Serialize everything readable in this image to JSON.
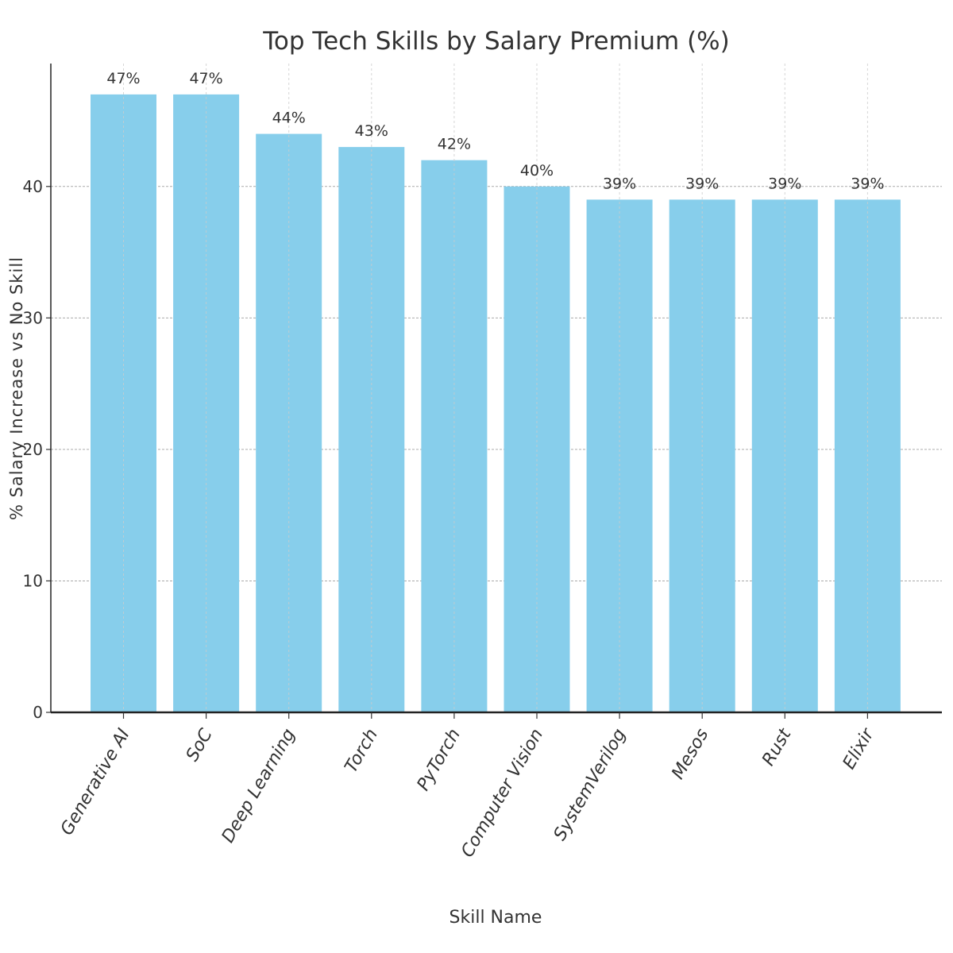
{
  "chart_data": {
    "type": "bar",
    "title": "Top Tech Skills by Salary Premium (%)",
    "xlabel": "Skill Name",
    "ylabel": "% Salary Increase vs No Skill",
    "categories": [
      "Generative AI",
      "SoC",
      "Deep Learning",
      "Torch",
      "PyTorch",
      "Computer Vision",
      "SystemVerilog",
      "Mesos",
      "Rust",
      "Elixir"
    ],
    "values": [
      47,
      47,
      44,
      43,
      42,
      40,
      39,
      39,
      39,
      39
    ],
    "data_labels": [
      "47%",
      "47%",
      "44%",
      "43%",
      "42%",
      "40%",
      "39%",
      "39%",
      "39%",
      "39%"
    ],
    "ylim": [
      0,
      49.35
    ],
    "yticks": [
      0,
      10,
      20,
      30,
      40
    ],
    "ytick_labels": [
      "0",
      "10",
      "20",
      "30",
      "40"
    ],
    "grid": true,
    "legend": "none",
    "bar_color": "#87CEEB"
  }
}
